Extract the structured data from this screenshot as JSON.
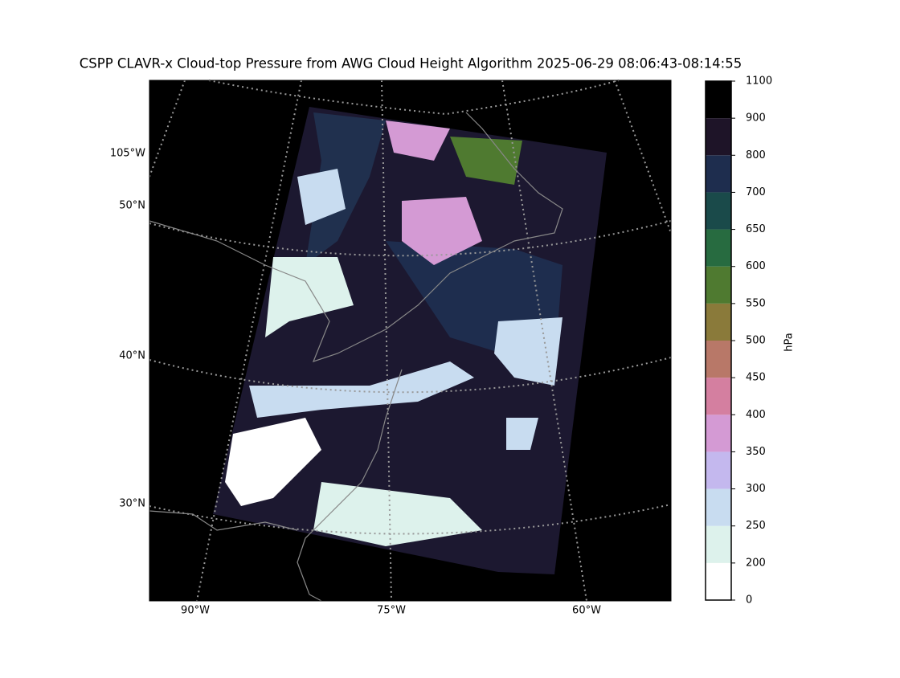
{
  "title": "CSPP CLAVR-x Cloud-top Pressure from AWG Cloud Height Algorithm 2025-06-29 08:06:43-08:14:55",
  "map": {
    "left_labels": [
      "105°W",
      "50°N",
      "40°N",
      "30°N"
    ],
    "bottom_labels": [
      "90°W",
      "75°W",
      "60°W"
    ]
  },
  "colorbar": {
    "label": "hPa",
    "boundaries": [
      0,
      200,
      250,
      300,
      350,
      400,
      450,
      500,
      550,
      600,
      650,
      700,
      800,
      900,
      1100
    ],
    "colors": [
      "#ffffff",
      "#ddf2ec",
      "#c8dcf0",
      "#c4b8ee",
      "#d49ad4",
      "#d47fa0",
      "#b87868",
      "#8a7a3a",
      "#4f7a30",
      "#276b40",
      "#1a4a4a",
      "#1e2d4e",
      "#1e1428",
      "#000000"
    ]
  }
}
